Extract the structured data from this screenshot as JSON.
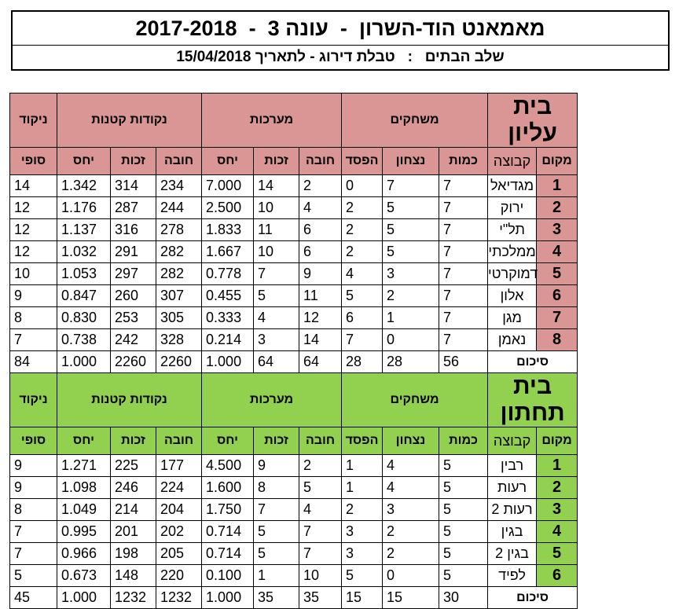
{
  "header": {
    "title": "מאמאנט הוד-השרון  -  עונה 3  -  2017-2018",
    "subtitle": "שלב הבתים   :   טבלת דירוג - לתאריך 15/04/2018"
  },
  "column_groups": {
    "players": "משחקים",
    "sets": "מערכות",
    "points": "נקודות קטנות",
    "final": "ניקוד"
  },
  "columns": {
    "place": "מקום",
    "team": "קבוצה",
    "played": "כמות",
    "won": "נצחון",
    "lost": "הפסד",
    "sets_against": "חובה",
    "sets_for": "זכות",
    "sets_ratio": "יחס",
    "points_against": "חובה",
    "points_for": "זכות",
    "points_ratio": "יחס",
    "final": "סופי"
  },
  "colors": {
    "upper_house": "#da9694",
    "lower_house": "#92d050"
  },
  "upper": {
    "name": "בית עליון",
    "rows": [
      {
        "place": "1",
        "team": "מגדיאל",
        "played": "7",
        "won": "7",
        "lost": "0",
        "sa": "2",
        "sf": "14",
        "sr": "7.000",
        "pa": "234",
        "pf": "314",
        "pr": "1.342",
        "score": "14"
      },
      {
        "place": "2",
        "team": "ירוק",
        "played": "7",
        "won": "5",
        "lost": "2",
        "sa": "4",
        "sf": "10",
        "sr": "2.500",
        "pa": "244",
        "pf": "287",
        "pr": "1.176",
        "score": "12"
      },
      {
        "place": "3",
        "team": "תל\"י",
        "played": "7",
        "won": "5",
        "lost": "2",
        "sa": "6",
        "sf": "11",
        "sr": "1.833",
        "pa": "278",
        "pf": "316",
        "pr": "1.137",
        "score": "12"
      },
      {
        "place": "4",
        "team": "ממלכתי",
        "played": "7",
        "won": "5",
        "lost": "2",
        "sa": "6",
        "sf": "10",
        "sr": "1.667",
        "pa": "282",
        "pf": "291",
        "pr": "1.032",
        "score": "12"
      },
      {
        "place": "5",
        "team": "דמוקרטי",
        "played": "7",
        "won": "3",
        "lost": "4",
        "sa": "9",
        "sf": "7",
        "sr": "0.778",
        "pa": "282",
        "pf": "297",
        "pr": "1.053",
        "score": "10"
      },
      {
        "place": "6",
        "team": "אלון",
        "played": "7",
        "won": "2",
        "lost": "5",
        "sa": "11",
        "sf": "5",
        "sr": "0.455",
        "pa": "307",
        "pf": "260",
        "pr": "0.847",
        "score": "9"
      },
      {
        "place": "7",
        "team": "מגן",
        "played": "7",
        "won": "1",
        "lost": "6",
        "sa": "12",
        "sf": "4",
        "sr": "0.333",
        "pa": "305",
        "pf": "253",
        "pr": "0.830",
        "score": "8"
      },
      {
        "place": "8",
        "team": "נאמן",
        "played": "7",
        "won": "0",
        "lost": "7",
        "sa": "14",
        "sf": "3",
        "sr": "0.214",
        "pa": "328",
        "pf": "242",
        "pr": "0.738",
        "score": "7"
      }
    ],
    "total": {
      "label": "סיכום",
      "played": "56",
      "won": "28",
      "lost": "28",
      "sa": "64",
      "sf": "64",
      "sr": "1.000",
      "pa": "2260",
      "pf": "2260",
      "pr": "1.000",
      "score": "84"
    }
  },
  "lower": {
    "name": "בית תחתון",
    "rows": [
      {
        "place": "1",
        "team": "רבין",
        "played": "5",
        "won": "4",
        "lost": "1",
        "sa": "2",
        "sf": "9",
        "sr": "4.500",
        "pa": "177",
        "pf": "225",
        "pr": "1.271",
        "score": "9"
      },
      {
        "place": "2",
        "team": "רעות",
        "played": "5",
        "won": "4",
        "lost": "1",
        "sa": "5",
        "sf": "8",
        "sr": "1.600",
        "pa": "224",
        "pf": "246",
        "pr": "1.098",
        "score": "9"
      },
      {
        "place": "3",
        "team": "רעות 2",
        "played": "5",
        "won": "3",
        "lost": "2",
        "sa": "4",
        "sf": "7",
        "sr": "1.750",
        "pa": "204",
        "pf": "214",
        "pr": "1.049",
        "score": "8"
      },
      {
        "place": "4",
        "team": "בגין",
        "played": "5",
        "won": "2",
        "lost": "3",
        "sa": "7",
        "sf": "5",
        "sr": "0.714",
        "pa": "202",
        "pf": "201",
        "pr": "0.995",
        "score": "7"
      },
      {
        "place": "5",
        "team": "בגין 2",
        "played": "5",
        "won": "2",
        "lost": "3",
        "sa": "7",
        "sf": "5",
        "sr": "0.714",
        "pa": "205",
        "pf": "198",
        "pr": "0.966",
        "score": "7"
      },
      {
        "place": "6",
        "team": "לפיד",
        "played": "5",
        "won": "0",
        "lost": "5",
        "sa": "10",
        "sf": "1",
        "sr": "0.100",
        "pa": "220",
        "pf": "148",
        "pr": "0.673",
        "score": "5"
      }
    ],
    "total": {
      "label": "סיכום",
      "played": "30",
      "won": "15",
      "lost": "15",
      "sa": "35",
      "sf": "35",
      "sr": "1.000",
      "pa": "1232",
      "pf": "1232",
      "pr": "1.000",
      "score": "45"
    }
  }
}
